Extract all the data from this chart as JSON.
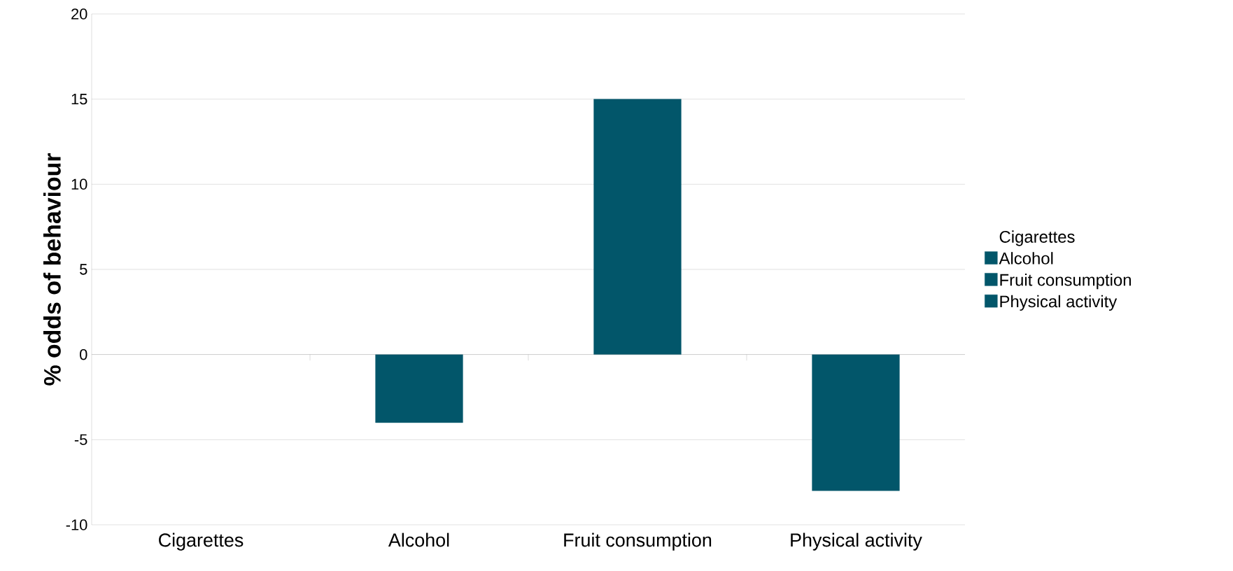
{
  "chart_data": {
    "type": "bar",
    "ylabel": "% odds of behaviour",
    "legend_title": "Cigarettes",
    "categories": [
      "Cigarettes",
      "Alcohol",
      "Fruit consumption",
      "Physical activity"
    ],
    "series": [
      {
        "name": "Alcohol",
        "color": "#02566a",
        "values": [
          null,
          -4,
          null,
          null
        ]
      },
      {
        "name": "Fruit consumption",
        "color": "#02566a",
        "values": [
          null,
          null,
          15,
          null
        ]
      },
      {
        "name": "Physical activity",
        "color": "#02566a",
        "values": [
          null,
          null,
          null,
          -8
        ]
      }
    ],
    "ylim": [
      -10,
      20
    ],
    "yticks": [
      -10,
      -5,
      0,
      5,
      10,
      15,
      20
    ],
    "grid": "y",
    "legend": "right"
  }
}
